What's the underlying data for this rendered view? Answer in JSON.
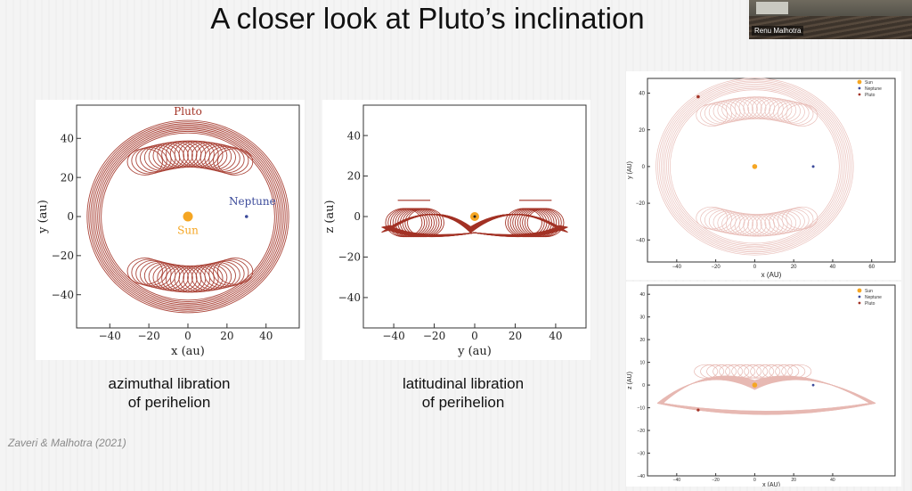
{
  "slide": {
    "title": "A closer look at Pluto’s inclination",
    "citation": "Zaveri & Malhotra (2021)",
    "presenter_name": "Renu Malhotra",
    "caption_left_line1": "azimuthal libration",
    "caption_left_line2": "of perihelion",
    "caption_mid_line1": "latitudinal libration",
    "caption_mid_line2": "of perihelion"
  },
  "colors": {
    "pluto": "#a33326",
    "pluto_light": "#e7b9b3",
    "sun": "#f5a623",
    "neptune": "#3b4a9a"
  },
  "chart_data": [
    {
      "type": "scatter",
      "panel": "left",
      "xlabel": "x (au)",
      "ylabel": "y (au)",
      "xlim": [
        -57,
        57
      ],
      "ylim": [
        -57,
        57
      ],
      "xticks": [
        -40,
        -20,
        0,
        20,
        40
      ],
      "yticks": [
        -40,
        -20,
        0,
        20,
        40
      ],
      "xtick_labels": [
        "−40",
        "−20",
        "0",
        "20",
        "40"
      ],
      "ytick_labels": [
        "−40",
        "−20",
        "0",
        "20",
        "40"
      ],
      "labels": {
        "pluto": "Pluto",
        "neptune": "Neptune",
        "sun": "Sun"
      },
      "points": {
        "sun": [
          0,
          0
        ],
        "neptune": [
          30,
          0
        ]
      }
    },
    {
      "type": "scatter",
      "panel": "middle",
      "xlabel": "y (au)",
      "ylabel": "z (au)",
      "xlim": [
        -55,
        55
      ],
      "ylim": [
        -55,
        55
      ],
      "xticks": [
        -40,
        -20,
        0,
        20,
        40
      ],
      "yticks": [
        -40,
        -20,
        0,
        20,
        40
      ],
      "xtick_labels": [
        "−40",
        "−20",
        "0",
        "20",
        "40"
      ],
      "ytick_labels": [
        "−40",
        "−20",
        "0",
        "20",
        "40"
      ],
      "points": {
        "sun": [
          0,
          0
        ]
      }
    },
    {
      "type": "scatter",
      "panel": "right-top",
      "xlabel": "x (AU)",
      "ylabel": "y (AU)",
      "xlim": [
        -55,
        72
      ],
      "ylim": [
        -52,
        48
      ],
      "xticks": [
        -40,
        -20,
        0,
        20,
        40,
        60
      ],
      "yticks": [
        -40,
        -20,
        0,
        20,
        40
      ],
      "xtick_labels": [
        "−40",
        "−20",
        "0",
        "20",
        "40",
        "60"
      ],
      "ytick_labels": [
        "−40",
        "−20",
        "0",
        "20",
        "40"
      ],
      "legend": [
        "Sun",
        "Neptune",
        "Pluto"
      ],
      "legend_position": "top-right",
      "points": {
        "sun": [
          0,
          0
        ],
        "neptune": [
          30,
          0
        ],
        "pluto": [
          -29,
          38
        ]
      }
    },
    {
      "type": "scatter",
      "panel": "right-bottom",
      "xlabel": "x (AU)",
      "ylabel": "z (AU)",
      "xlim": [
        -55,
        72
      ],
      "ylim": [
        -40,
        44
      ],
      "xticks": [
        -40,
        -20,
        0,
        20,
        40
      ],
      "yticks": [
        -40,
        -30,
        -20,
        -10,
        0,
        10,
        20,
        30,
        40
      ],
      "xtick_labels": [
        "−40",
        "−20",
        "0",
        "20",
        "40"
      ],
      "ytick_labels": [
        "−40",
        "−30",
        "−20",
        "−10",
        "0",
        "10",
        "20",
        "30",
        "40"
      ],
      "legend": [
        "Sun",
        "Neptune",
        "Pluto"
      ],
      "legend_position": "top-right",
      "points": {
        "sun": [
          0,
          0
        ],
        "neptune": [
          30,
          0
        ],
        "pluto": [
          -29,
          -11
        ]
      }
    }
  ]
}
